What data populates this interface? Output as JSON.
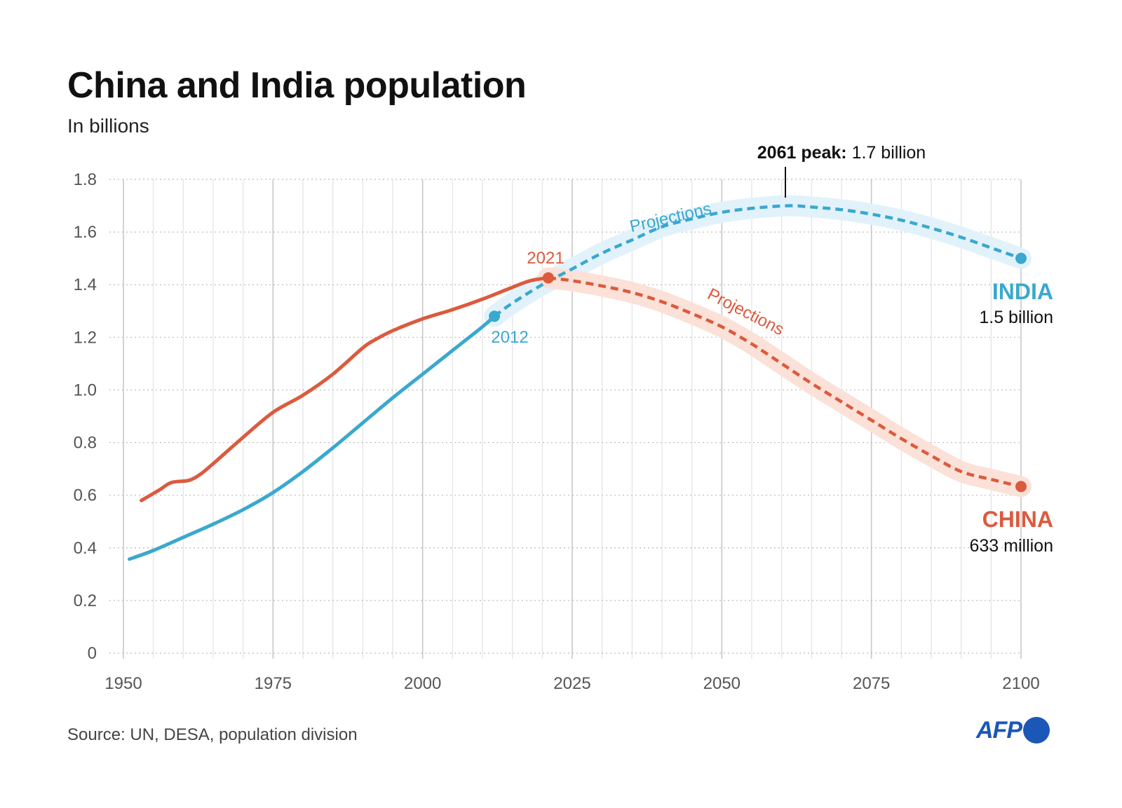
{
  "header": {
    "title": "China and India population",
    "subtitle": "In billions"
  },
  "footer": {
    "source": "Source: UN, DESA, population division",
    "logo": "AFP"
  },
  "colors": {
    "india": "#3aa8cf",
    "china": "#dc5a3e",
    "india_band": "#e2f2fb",
    "china_band": "#fbe1d7",
    "grid": "#cccccc"
  },
  "annotations": {
    "india_label": "INDIA",
    "india_value": "1.5 billion",
    "china_label": "CHINA",
    "china_value": "633 million",
    "india_split_year": "2012",
    "china_split_year": "2021",
    "india_projection": "Projections",
    "china_projection": "Projections",
    "peak_bold": "2061 peak:",
    "peak_value": " 1.7 billion"
  },
  "chart_data": {
    "type": "line",
    "title": "China and India population",
    "subtitle": "In billions",
    "xlabel": "",
    "ylabel": "",
    "xlim": [
      1950,
      2100
    ],
    "ylim": [
      0,
      1.8
    ],
    "x_ticks": [
      1950,
      1975,
      2000,
      2025,
      2050,
      2075,
      2100
    ],
    "y_ticks": [
      0,
      0.2,
      0.4,
      0.6,
      0.8,
      1.0,
      1.2,
      1.4,
      1.6,
      1.8
    ],
    "y_tick_labels": [
      "0",
      "0.2",
      "0.4",
      "0.6",
      "0.8",
      "1.0",
      "1.2",
      "1.4",
      "1.6",
      "1.8"
    ],
    "grid": "vertical every 5 years, horizontal dotted at y ticks",
    "series": [
      {
        "name": "INDIA",
        "historical": [
          [
            1951,
            0.357
          ],
          [
            1955,
            0.39
          ],
          [
            1960,
            0.44
          ],
          [
            1965,
            0.49
          ],
          [
            1970,
            0.545
          ],
          [
            1975,
            0.61
          ],
          [
            1980,
            0.69
          ],
          [
            1985,
            0.78
          ],
          [
            1990,
            0.875
          ],
          [
            1995,
            0.97
          ],
          [
            2000,
            1.06
          ],
          [
            2005,
            1.15
          ],
          [
            2010,
            1.24
          ],
          [
            2012,
            1.28
          ]
        ],
        "projection": [
          [
            2012,
            1.28
          ],
          [
            2015,
            1.33
          ],
          [
            2020,
            1.4
          ],
          [
            2025,
            1.46
          ],
          [
            2030,
            1.52
          ],
          [
            2035,
            1.57
          ],
          [
            2040,
            1.62
          ],
          [
            2045,
            1.65
          ],
          [
            2050,
            1.675
          ],
          [
            2055,
            1.69
          ],
          [
            2061,
            1.7
          ],
          [
            2065,
            1.695
          ],
          [
            2070,
            1.685
          ],
          [
            2075,
            1.668
          ],
          [
            2080,
            1.645
          ],
          [
            2085,
            1.615
          ],
          [
            2090,
            1.58
          ],
          [
            2095,
            1.54
          ],
          [
            2100,
            1.5
          ]
        ]
      },
      {
        "name": "CHINA",
        "historical": [
          [
            1953,
            0.58
          ],
          [
            1956,
            0.62
          ],
          [
            1958,
            0.648
          ],
          [
            1961,
            0.657
          ],
          [
            1963,
            0.682
          ],
          [
            1965,
            0.72
          ],
          [
            1970,
            0.82
          ],
          [
            1975,
            0.915
          ],
          [
            1980,
            0.98
          ],
          [
            1985,
            1.06
          ],
          [
            1990,
            1.16
          ],
          [
            1992,
            1.19
          ],
          [
            1995,
            1.225
          ],
          [
            2000,
            1.27
          ],
          [
            2005,
            1.305
          ],
          [
            2010,
            1.345
          ],
          [
            2015,
            1.39
          ],
          [
            2018,
            1.415
          ],
          [
            2021,
            1.426
          ]
        ],
        "projection": [
          [
            2021,
            1.426
          ],
          [
            2025,
            1.415
          ],
          [
            2030,
            1.395
          ],
          [
            2035,
            1.37
          ],
          [
            2040,
            1.335
          ],
          [
            2045,
            1.29
          ],
          [
            2050,
            1.24
          ],
          [
            2055,
            1.175
          ],
          [
            2060,
            1.1
          ],
          [
            2065,
            1.025
          ],
          [
            2070,
            0.955
          ],
          [
            2075,
            0.885
          ],
          [
            2080,
            0.815
          ],
          [
            2085,
            0.75
          ],
          [
            2090,
            0.69
          ],
          [
            2095,
            0.66
          ],
          [
            2100,
            0.633
          ]
        ]
      }
    ]
  }
}
